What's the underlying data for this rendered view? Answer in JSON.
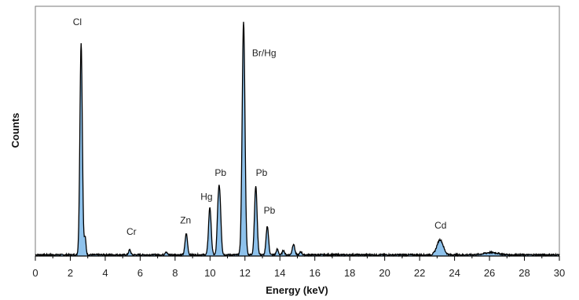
{
  "chart_data": {
    "type": "line",
    "title": "",
    "xlabel": "Energy (keV)",
    "ylabel": "Counts",
    "xlim": [
      0,
      30
    ],
    "ylim": [
      0,
      1
    ],
    "grid": false,
    "x_ticks": [
      "0",
      "2",
      "4",
      "6",
      "8",
      "10",
      "12",
      "14",
      "16",
      "18",
      "20",
      "22",
      "24",
      "26",
      "28",
      "30"
    ],
    "series": [
      {
        "fill_color": "#8ec2ec",
        "line_color": "#000000",
        "baseline": 0.005,
        "peaks": [
          {
            "x": 2.62,
            "y": 0.85,
            "w": 0.07
          },
          {
            "x": 2.85,
            "y": 0.07,
            "w": 0.05
          },
          {
            "x": 5.4,
            "y": 0.02,
            "w": 0.06
          },
          {
            "x": 7.48,
            "y": 0.012,
            "w": 0.06
          },
          {
            "x": 8.64,
            "y": 0.085,
            "w": 0.07
          },
          {
            "x": 9.99,
            "y": 0.19,
            "w": 0.075
          },
          {
            "x": 10.45,
            "y": 0.11,
            "w": 0.06
          },
          {
            "x": 10.55,
            "y": 0.24,
            "w": 0.075
          },
          {
            "x": 11.92,
            "y": 0.935,
            "w": 0.08
          },
          {
            "x": 12.62,
            "y": 0.275,
            "w": 0.075
          },
          {
            "x": 13.28,
            "y": 0.115,
            "w": 0.07
          },
          {
            "x": 13.85,
            "y": 0.022,
            "w": 0.06
          },
          {
            "x": 14.2,
            "y": 0.018,
            "w": 0.06
          },
          {
            "x": 14.78,
            "y": 0.043,
            "w": 0.07
          },
          {
            "x": 15.2,
            "y": 0.012,
            "w": 0.06
          },
          {
            "x": 23.17,
            "y": 0.06,
            "w": 0.18
          },
          {
            "x": 26.1,
            "y": 0.009,
            "w": 0.4
          }
        ]
      }
    ],
    "annotations": [
      {
        "text": "Cl",
        "x": 2.4,
        "y": 0.925
      },
      {
        "text": "Cr",
        "x": 5.5,
        "y": 0.085
      },
      {
        "text": "Zn",
        "x": 8.6,
        "y": 0.13
      },
      {
        "text": "Hg",
        "x": 9.8,
        "y": 0.225
      },
      {
        "text": "Pb",
        "x": 10.6,
        "y": 0.32
      },
      {
        "text": "Br/Hg",
        "x": 13.1,
        "y": 0.8
      },
      {
        "text": "Pb",
        "x": 12.95,
        "y": 0.32
      },
      {
        "text": "Pb",
        "x": 13.4,
        "y": 0.17
      },
      {
        "text": "Cd",
        "x": 23.2,
        "y": 0.11
      }
    ]
  }
}
